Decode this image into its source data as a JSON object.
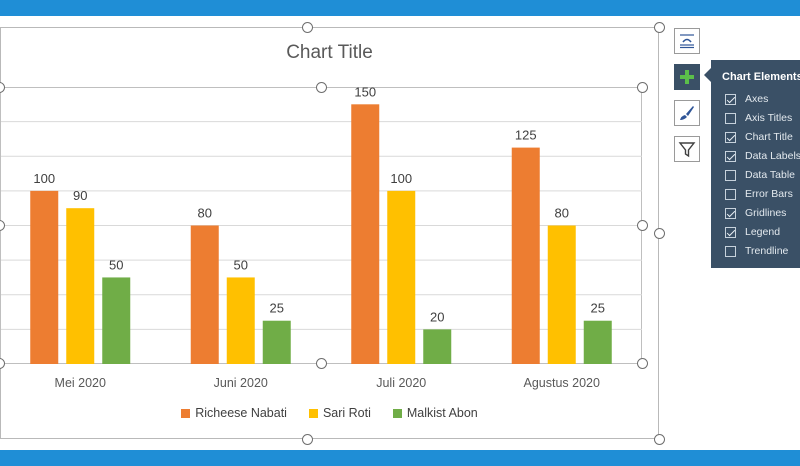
{
  "colors": {
    "band": "#1f8ed6",
    "series": [
      "#ed7d31",
      "#ffc000",
      "#70ad47"
    ],
    "flyout_bg": "#3a5066"
  },
  "chart_data": {
    "type": "bar",
    "title": "Chart Title",
    "categories": [
      "Mei 2020",
      "Juni 2020",
      "Juli 2020",
      "Agustus 2020"
    ],
    "series": [
      {
        "name": "Richeese Nabati",
        "values": [
          100,
          80,
          150,
          125
        ]
      },
      {
        "name": "Sari Roti",
        "values": [
          90,
          50,
          100,
          80
        ]
      },
      {
        "name": "Malkist Abon",
        "values": [
          50,
          25,
          20,
          25
        ]
      }
    ],
    "ylim": [
      0,
      160
    ],
    "gridlines": true,
    "data_labels": true,
    "legend_position": "bottom"
  },
  "chart_elements_panel": {
    "title": "Chart Elements",
    "items": [
      {
        "label": "Axes",
        "checked": true
      },
      {
        "label": "Axis Titles",
        "checked": false
      },
      {
        "label": "Chart Title",
        "checked": true
      },
      {
        "label": "Data Labels",
        "checked": true
      },
      {
        "label": "Data Table",
        "checked": false
      },
      {
        "label": "Error Bars",
        "checked": false
      },
      {
        "label": "Gridlines",
        "checked": true
      },
      {
        "label": "Legend",
        "checked": true
      },
      {
        "label": "Trendline",
        "checked": false
      }
    ]
  },
  "side_buttons": [
    {
      "icon": "layout-options-icon"
    },
    {
      "icon": "plus-icon"
    },
    {
      "icon": "paintbrush-icon"
    },
    {
      "icon": "filter-icon"
    }
  ]
}
